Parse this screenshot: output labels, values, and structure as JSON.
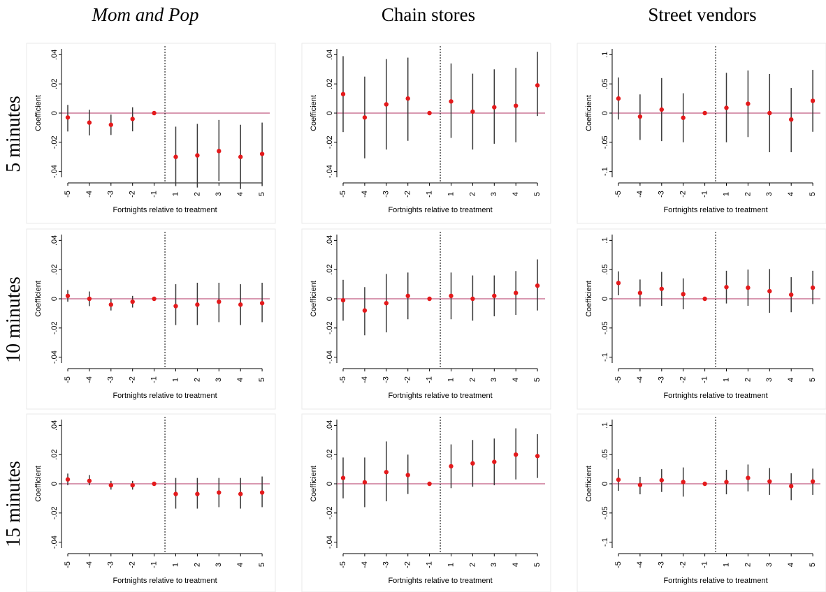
{
  "column_titles": [
    "Mom and Pop",
    "Chain stores",
    "Street vendors"
  ],
  "row_labels": [
    "5 minutes",
    "10 minutes",
    "15 minutes"
  ],
  "chart_data": [
    {
      "type": "errorbar",
      "categories": [
        "-5",
        "-4",
        "-3",
        "-2",
        "-1",
        "1",
        "2",
        "3",
        "4",
        "5"
      ],
      "xlabel": "Fortnights relative to treatment",
      "ylabel": "Coefficient",
      "color": "#e41a1c",
      "ci_color": "#3a3a3a",
      "hline": 0,
      "hline_color": "#b03060",
      "values": [
        -0.003,
        -0.0065,
        -0.008,
        -0.004,
        0,
        -0.03,
        -0.029,
        -0.026,
        -0.03,
        -0.028
      ],
      "ci_low": [
        -0.0126,
        -0.0153,
        -0.015,
        -0.0125,
        null,
        -0.05,
        -0.051,
        -0.0465,
        -0.052,
        -0.05
      ],
      "ci_high": [
        0.0056,
        0.0023,
        -0.001,
        0.004,
        null,
        -0.0093,
        -0.0074,
        -0.0047,
        -0.008,
        -0.0065
      ],
      "ylim": [
        -0.044,
        0.044
      ],
      "yticks": [
        {
          "value": -0.04,
          "label": "-.04"
        },
        {
          "value": -0.02,
          "label": "-.02"
        },
        0,
        {
          "value": 0.02,
          "label": ".02"
        },
        {
          "value": 0.04,
          "label": ".04"
        }
      ]
    },
    {
      "type": "errorbar",
      "categories": [
        "-5",
        "-4",
        "-3",
        "-2",
        "-1",
        "1",
        "2",
        "3",
        "4",
        "5"
      ],
      "xlabel": "Fortnights relative to treatment",
      "ylabel": "Coefficient",
      "color": "#e41a1c",
      "ci_color": "#3a3a3a",
      "hline": 0,
      "hline_color": "#b03060",
      "values": [
        0.013,
        -0.003,
        0.006,
        0.01,
        0,
        0.008,
        0.001,
        0.004,
        0.005,
        0.019
      ],
      "ci_low": [
        -0.013,
        -0.031,
        -0.025,
        -0.019,
        null,
        -0.017,
        -0.025,
        -0.021,
        -0.02,
        -0.002
      ],
      "ci_high": [
        0.039,
        0.025,
        0.037,
        0.038,
        null,
        0.034,
        0.027,
        0.03,
        0.031,
        0.042
      ],
      "ylim": [
        -0.044,
        0.044
      ],
      "yticks": [
        {
          "value": -0.04,
          "label": "-.04"
        },
        {
          "value": -0.02,
          "label": "-.02"
        },
        0,
        {
          "value": 0.02,
          "label": ".02"
        },
        {
          "value": 0.04,
          "label": ".04"
        }
      ]
    },
    {
      "type": "errorbar",
      "categories": [
        "-5",
        "-4",
        "-3",
        "-2",
        "-1",
        "1",
        "2",
        "3",
        "4",
        "5"
      ],
      "xlabel": "Fortnights relative to treatment",
      "ylabel": "Coefficient",
      "color": "#e41a1c",
      "ci_color": "#3a3a3a",
      "hline": 0,
      "hline_color": "#b03060",
      "values": [
        0.025,
        -0.006,
        0.006,
        -0.008,
        0,
        0.009,
        0.016,
        0,
        -0.011,
        0.021
      ],
      "ci_low": [
        -0.011,
        -0.046,
        -0.048,
        -0.05,
        null,
        -0.05,
        -0.041,
        -0.067,
        -0.067,
        -0.032
      ],
      "ci_high": [
        0.061,
        0.032,
        0.06,
        0.034,
        null,
        0.069,
        0.073,
        0.067,
        0.043,
        0.074
      ],
      "ylim": [
        -0.11,
        0.11
      ],
      "yticks": [
        {
          "value": -0.1,
          "label": "-.1"
        },
        {
          "value": -0.05,
          "label": "-.05"
        },
        0,
        {
          "value": 0.05,
          "label": ".05"
        },
        {
          "value": 0.1,
          "label": ".1"
        }
      ]
    },
    {
      "type": "errorbar",
      "categories": [
        "-5",
        "-4",
        "-3",
        "-2",
        "-1",
        "1",
        "2",
        "3",
        "4",
        "5"
      ],
      "xlabel": "Fortnights relative to treatment",
      "ylabel": "Coefficient",
      "color": "#e41a1c",
      "ci_color": "#3a3a3a",
      "hline": 0,
      "hline_color": "#b03060",
      "values": [
        0.002,
        0,
        -0.004,
        -0.002,
        0,
        -0.005,
        -0.004,
        -0.002,
        -0.004,
        -0.003
      ],
      "ci_low": [
        -0.002,
        -0.005,
        -0.008,
        -0.006,
        null,
        -0.018,
        -0.018,
        -0.016,
        -0.018,
        -0.016
      ],
      "ci_high": [
        0.006,
        0.005,
        0,
        0.002,
        null,
        0.01,
        0.011,
        0.011,
        0.01,
        0.011
      ],
      "ylim": [
        -0.044,
        0.044
      ],
      "yticks": [
        {
          "value": -0.04,
          "label": "-.04"
        },
        {
          "value": -0.02,
          "label": "-.02"
        },
        0,
        {
          "value": 0.02,
          "label": ".02"
        },
        {
          "value": 0.04,
          "label": ".04"
        }
      ]
    },
    {
      "type": "errorbar",
      "categories": [
        "-5",
        "-4",
        "-3",
        "-2",
        "-1",
        "1",
        "2",
        "3",
        "4",
        "5"
      ],
      "xlabel": "Fortnights relative to treatment",
      "ylabel": "Coefficient",
      "color": "#e41a1c",
      "ci_color": "#3a3a3a",
      "hline": 0,
      "hline_color": "#b03060",
      "values": [
        -0.001,
        -0.008,
        -0.003,
        0.002,
        0,
        0.002,
        0,
        0.002,
        0.004,
        0.009
      ],
      "ci_low": [
        -0.015,
        -0.025,
        -0.023,
        -0.014,
        null,
        -0.014,
        -0.015,
        -0.012,
        -0.011,
        -0.008
      ],
      "ci_high": [
        0.013,
        0.008,
        0.017,
        0.018,
        null,
        0.018,
        0.016,
        0.016,
        0.019,
        0.027
      ],
      "ylim": [
        -0.044,
        0.044
      ],
      "yticks": [
        {
          "value": -0.04,
          "label": "-.04"
        },
        {
          "value": -0.02,
          "label": "-.02"
        },
        0,
        {
          "value": 0.02,
          "label": ".02"
        },
        {
          "value": 0.04,
          "label": ".04"
        }
      ]
    },
    {
      "type": "errorbar",
      "categories": [
        "-5",
        "-4",
        "-3",
        "-2",
        "-1",
        "1",
        "2",
        "3",
        "4",
        "5"
      ],
      "xlabel": "Fortnights relative to treatment",
      "ylabel": "Coefficient",
      "color": "#e41a1c",
      "ci_color": "#3a3a3a",
      "hline": 0,
      "hline_color": "#b03060",
      "values": [
        0.027,
        0.01,
        0.017,
        0.008,
        0,
        0.02,
        0.019,
        0.013,
        0.007,
        0.019
      ],
      "ci_low": [
        0.006,
        -0.013,
        -0.012,
        -0.018,
        null,
        -0.008,
        -0.012,
        -0.024,
        -0.023,
        -0.009
      ],
      "ci_high": [
        0.047,
        0.033,
        0.046,
        0.035,
        null,
        0.048,
        0.05,
        0.051,
        0.037,
        0.048
      ],
      "ylim": [
        -0.11,
        0.11
      ],
      "yticks": [
        {
          "value": -0.1,
          "label": "-.1"
        },
        {
          "value": -0.05,
          "label": "-.05"
        },
        0,
        {
          "value": 0.05,
          "label": ".05"
        },
        {
          "value": 0.1,
          "label": ".1"
        }
      ]
    },
    {
      "type": "errorbar",
      "categories": [
        "-5",
        "-4",
        "-3",
        "-2",
        "-1",
        "1",
        "2",
        "3",
        "4",
        "5"
      ],
      "xlabel": "Fortnights relative to treatment",
      "ylabel": "Coefficient",
      "color": "#e41a1c",
      "ci_color": "#3a3a3a",
      "hline": 0,
      "hline_color": "#b03060",
      "values": [
        0.003,
        0.002,
        -0.001,
        -0.001,
        0,
        -0.007,
        -0.007,
        -0.006,
        -0.007,
        -0.006
      ],
      "ci_low": [
        -0.001,
        -0.001,
        -0.004,
        -0.004,
        null,
        -0.017,
        -0.017,
        -0.016,
        -0.017,
        -0.016
      ],
      "ci_high": [
        0.007,
        0.006,
        0.002,
        0.002,
        null,
        0.004,
        0.004,
        0.004,
        0.004,
        0.005
      ],
      "ylim": [
        -0.044,
        0.044
      ],
      "yticks": [
        {
          "value": -0.04,
          "label": "-.04"
        },
        {
          "value": -0.02,
          "label": "-.02"
        },
        0,
        {
          "value": 0.02,
          "label": ".02"
        },
        {
          "value": 0.04,
          "label": ".04"
        }
      ]
    },
    {
      "type": "errorbar",
      "categories": [
        "-5",
        "-4",
        "-3",
        "-2",
        "-1",
        "1",
        "2",
        "3",
        "4",
        "5"
      ],
      "xlabel": "Fortnights relative to treatment",
      "ylabel": "Coefficient",
      "color": "#e41a1c",
      "ci_color": "#3a3a3a",
      "hline": 0,
      "hline_color": "#b03060",
      "values": [
        0.004,
        0.001,
        0.008,
        0.006,
        0,
        0.012,
        0.014,
        0.015,
        0.02,
        0.019
      ],
      "ci_low": [
        -0.01,
        -0.016,
        -0.012,
        -0.007,
        null,
        -0.003,
        -0.002,
        -0.001,
        0.003,
        0.004
      ],
      "ci_high": [
        0.018,
        0.018,
        0.029,
        0.02,
        null,
        0.027,
        0.03,
        0.031,
        0.038,
        0.034
      ],
      "ylim": [
        -0.044,
        0.044
      ],
      "yticks": [
        {
          "value": -0.04,
          "label": "-.04"
        },
        {
          "value": -0.02,
          "label": "-.02"
        },
        0,
        {
          "value": 0.02,
          "label": ".02"
        },
        {
          "value": 0.04,
          "label": ".04"
        }
      ]
    },
    {
      "type": "errorbar",
      "categories": [
        "-5",
        "-4",
        "-3",
        "-2",
        "-1",
        "1",
        "2",
        "3",
        "4",
        "5"
      ],
      "xlabel": "Fortnights relative to treatment",
      "ylabel": "Coefficient",
      "color": "#e41a1c",
      "ci_color": "#3a3a3a",
      "hline": 0,
      "hline_color": "#b03060",
      "values": [
        0.007,
        -0.002,
        0.006,
        0.003,
        0,
        0.003,
        0.01,
        0.004,
        -0.004,
        0.004
      ],
      "ci_low": [
        -0.012,
        -0.018,
        -0.014,
        -0.022,
        null,
        -0.018,
        -0.013,
        -0.019,
        -0.028,
        -0.019
      ],
      "ci_high": [
        0.025,
        0.012,
        0.025,
        0.028,
        null,
        0.024,
        0.033,
        0.027,
        0.018,
        0.026
      ],
      "ylim": [
        -0.11,
        0.11
      ],
      "yticks": [
        {
          "value": -0.1,
          "label": "-.1"
        },
        {
          "value": -0.05,
          "label": "-.05"
        },
        0,
        {
          "value": 0.05,
          "label": ".05"
        },
        {
          "value": 0.1,
          "label": ".1"
        }
      ]
    }
  ]
}
